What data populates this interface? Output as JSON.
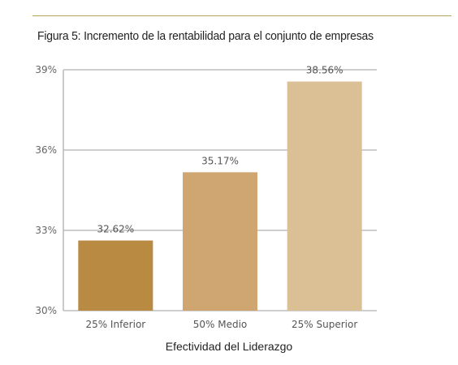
{
  "figure_title": "Figura 5: Incremento de la rentabilidad para el conjunto de empresas",
  "chart_data": {
    "type": "bar",
    "title": "Figura 5: Incremento de la rentabilidad para el conjunto de empresas",
    "xlabel": "Efectividad del Liderazgo",
    "ylabel": "",
    "categories": [
      "25% Inferior",
      "50% Medio",
      "25% Superior"
    ],
    "values": [
      32.62,
      35.17,
      38.56
    ],
    "data_labels": [
      "32.62%",
      "35.17%",
      "38.56%"
    ],
    "bar_colors": [
      "#b98a42",
      "#cfa672",
      "#dcc095"
    ],
    "ylim": [
      30,
      39
    ],
    "yticks": [
      30,
      33,
      36,
      39
    ],
    "ytick_labels": [
      "30%",
      "33%",
      "36%",
      "39%"
    ],
    "grid": true,
    "legend": "none"
  }
}
